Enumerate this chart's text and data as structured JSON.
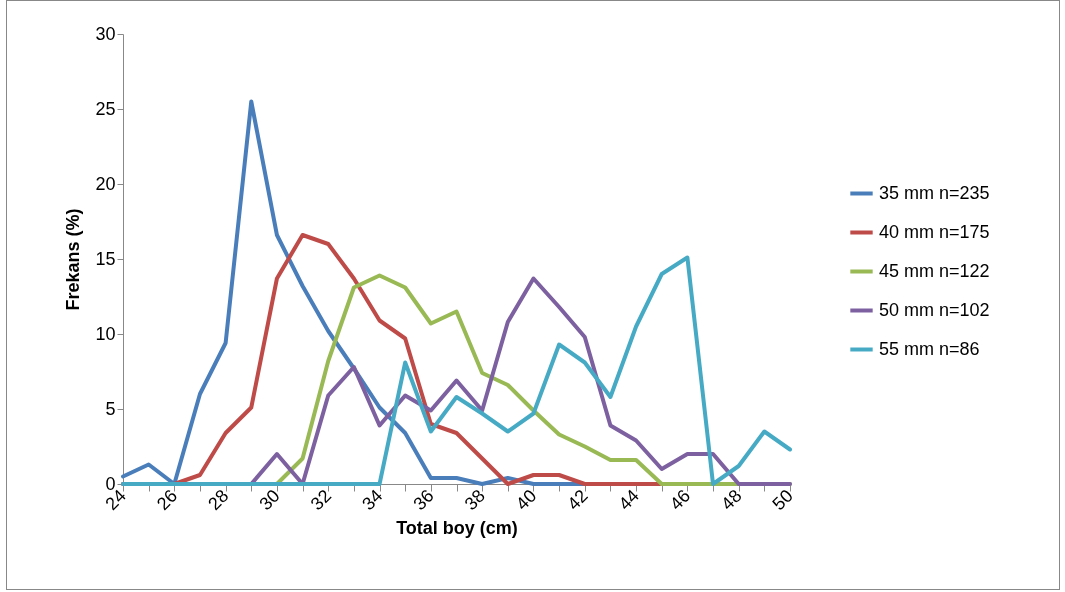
{
  "chart_data": {
    "type": "line",
    "xlabel": "Total boy (cm)",
    "ylabel": "Frekans (%)",
    "x": [
      24,
      25,
      26,
      27,
      28,
      29,
      30,
      31,
      32,
      33,
      34,
      35,
      36,
      37,
      38,
      39,
      40,
      41,
      42,
      43,
      44,
      45,
      46,
      47,
      48,
      49,
      50
    ],
    "series": [
      {
        "name": "35 mm n=235",
        "color": "#4a7ebb",
        "values": [
          0.5,
          1.3,
          0,
          6,
          9.4,
          25.5,
          16.6,
          13.2,
          10.2,
          7.7,
          5.1,
          3.4,
          0.4,
          0.4,
          0,
          0.4,
          0,
          0,
          0,
          0,
          0,
          0,
          0,
          0,
          0,
          null,
          null
        ]
      },
      {
        "name": "40 mm n=175",
        "color": "#be4b48",
        "values": [
          0,
          0,
          0,
          0.6,
          3.4,
          5.1,
          13.7,
          16.6,
          16,
          13.7,
          10.9,
          9.7,
          4,
          3.4,
          1.7,
          0,
          0.6,
          0.6,
          0,
          0,
          0,
          0,
          0,
          null,
          null,
          null,
          null
        ]
      },
      {
        "name": "45 mm n=122",
        "color": "#98b954",
        "values": [
          null,
          null,
          null,
          null,
          null,
          0,
          0,
          1.7,
          8.2,
          13.1,
          13.9,
          13.1,
          10.7,
          11.5,
          7.4,
          6.6,
          4.9,
          3.3,
          2.5,
          1.6,
          1.6,
          0,
          0,
          0,
          0,
          0,
          0
        ]
      },
      {
        "name": "50 mm n=102",
        "color": "#7d60a0",
        "values": [
          0,
          0,
          0,
          0,
          0,
          0,
          2,
          0,
          5.9,
          7.8,
          3.9,
          5.9,
          4.9,
          6.9,
          4.9,
          10.8,
          13.7,
          11.8,
          9.8,
          3.9,
          2.9,
          1,
          2,
          2,
          0,
          0,
          0
        ]
      },
      {
        "name": "55 mm n=86",
        "color": "#46aac5",
        "values": [
          0,
          0,
          0,
          0,
          0,
          0,
          0,
          0,
          0,
          0,
          0,
          8.1,
          3.5,
          5.8,
          4.7,
          3.5,
          4.7,
          9.3,
          8.1,
          5.8,
          10.5,
          14,
          15.1,
          0,
          1.2,
          3.5,
          2.3
        ]
      }
    ],
    "xlim": [
      24,
      50
    ],
    "xticks": [
      24,
      {
        "value": 25,
        "label": null
      },
      26,
      {
        "value": 27,
        "label": null
      },
      28,
      {
        "value": 29,
        "label": null
      },
      30,
      {
        "value": 31,
        "label": null
      },
      32,
      {
        "value": 33,
        "label": null
      },
      34,
      {
        "value": 35,
        "label": null
      },
      36,
      {
        "value": 37,
        "label": null
      },
      38,
      {
        "value": 39,
        "label": null
      },
      40,
      {
        "value": 41,
        "label": null
      },
      42,
      {
        "value": 43,
        "label": null
      },
      44,
      {
        "value": 45,
        "label": null
      },
      46,
      {
        "value": 47,
        "label": null
      },
      48,
      {
        "value": 49,
        "label": null
      },
      50
    ],
    "ylim": [
      0,
      30
    ],
    "yticks": [
      0,
      5,
      10,
      15,
      20,
      25,
      30
    ],
    "grid": false,
    "legend": "right",
    "marker": "none",
    "line_style": "solid"
  }
}
